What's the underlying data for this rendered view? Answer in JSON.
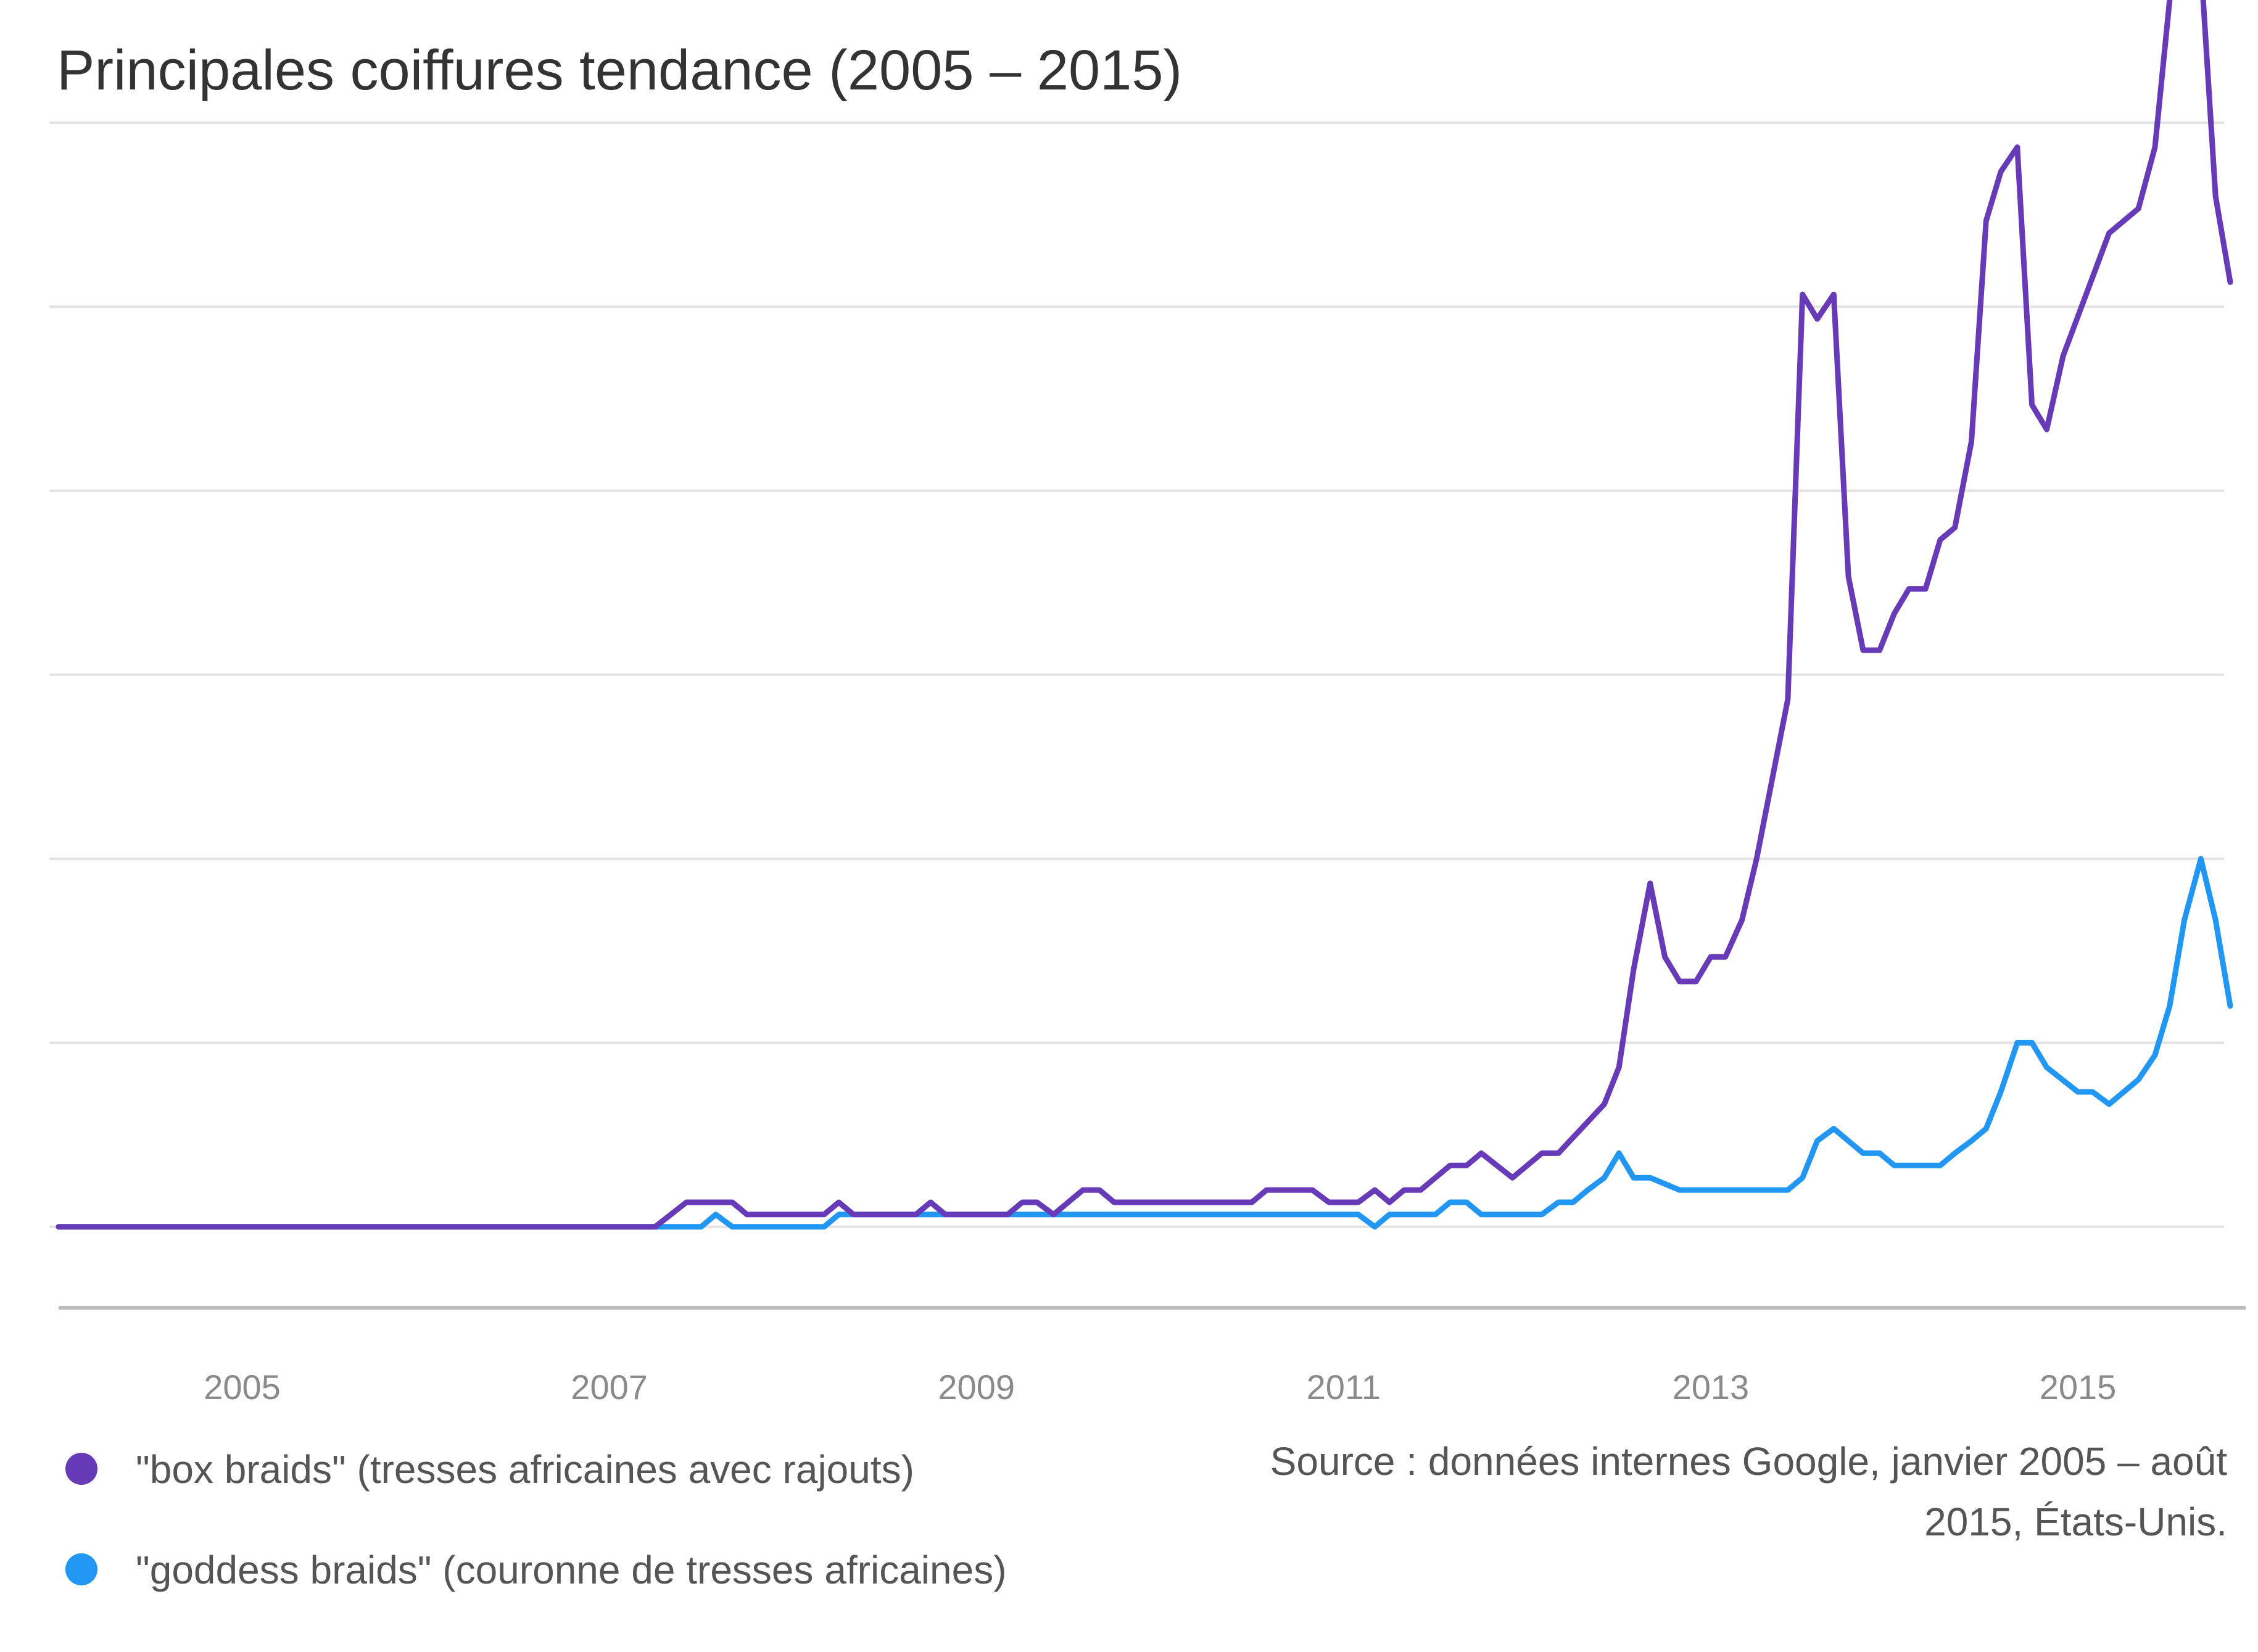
{
  "title": "Principales coiffures tendance (2005 – 2015)",
  "source_note": "Source : données internes Google, janvier 2005 – août 2015, États-Unis.",
  "chart_data": {
    "type": "line",
    "title": "Principales coiffures tendance (2005 – 2015)",
    "xlabel": "",
    "ylabel": "",
    "grid": true,
    "legend_position": "bottom-left",
    "x_tick_labels": [
      "2005",
      "2007",
      "2009",
      "2011",
      "2013",
      "2015"
    ],
    "x_tick_years": [
      2005,
      2007,
      2009,
      2011,
      2013,
      2015
    ],
    "xlim": [
      2004.0,
      2015.83
    ],
    "ylim": [
      -6.5,
      100
    ],
    "series": [
      {
        "name": "\"box braids\" (tresses africaines avec rajouts)",
        "color": "#673AB7",
        "x": [
          2004.0,
          2007.25,
          2007.42,
          2007.67,
          2007.75,
          2008.17,
          2008.25,
          2008.33,
          2008.67,
          2008.75,
          2008.83,
          2009.17,
          2009.25,
          2009.33,
          2009.42,
          2009.58,
          2009.67,
          2009.75,
          2010.5,
          2010.58,
          2010.83,
          2010.92,
          2011.08,
          2011.17,
          2011.25,
          2011.33,
          2011.42,
          2011.58,
          2011.67,
          2011.75,
          2011.92,
          2012.08,
          2012.17,
          2012.42,
          2012.5,
          2012.58,
          2012.67,
          2012.75,
          2012.83,
          2012.92,
          2013.0,
          2013.08,
          2013.17,
          2013.25,
          2013.42,
          2013.5,
          2013.58,
          2013.67,
          2013.75,
          2013.83,
          2013.92,
          2014.0,
          2014.08,
          2014.17,
          2014.25,
          2014.33,
          2014.42,
          2014.5,
          2014.58,
          2014.67,
          2014.75,
          2014.83,
          2014.92,
          2015.17,
          2015.25,
          2015.33,
          2015.42,
          2015.5,
          2015.58,
          2015.67,
          2015.75,
          2015.83
        ],
        "y": [
          0,
          0,
          2,
          2,
          1,
          1,
          2,
          1,
          1,
          2,
          1,
          1,
          2,
          2,
          1,
          3,
          3,
          2,
          2,
          3,
          3,
          2,
          2,
          3,
          2,
          3,
          3,
          5,
          5,
          6,
          4,
          6,
          6,
          10,
          13,
          21,
          28,
          22,
          20,
          20,
          22,
          22,
          25,
          30,
          43,
          76,
          74,
          76,
          53,
          47,
          47,
          50,
          52,
          52,
          56,
          57,
          64,
          82,
          86,
          88,
          67,
          65,
          71,
          81,
          82,
          83,
          88,
          100,
          106,
          103,
          84,
          77
        ]
      },
      {
        "name": "\"goddess braids\" (couronne de tresses africaines)",
        "color": "#2196F3",
        "x": [
          2004.0,
          2007.25,
          2007.5,
          2007.58,
          2007.67,
          2008.17,
          2008.25,
          2008.42,
          2011.08,
          2011.17,
          2011.25,
          2011.5,
          2011.58,
          2011.67,
          2011.75,
          2012.08,
          2012.17,
          2012.25,
          2012.33,
          2012.42,
          2012.5,
          2012.58,
          2012.67,
          2012.83,
          2012.92,
          2013.0,
          2013.42,
          2013.5,
          2013.58,
          2013.67,
          2013.83,
          2013.92,
          2014.0,
          2014.25,
          2014.33,
          2014.42,
          2014.5,
          2014.58,
          2014.67,
          2014.75,
          2014.83,
          2015.0,
          2015.08,
          2015.17,
          2015.25,
          2015.33,
          2015.42,
          2015.5,
          2015.58,
          2015.67,
          2015.75,
          2015.83
        ],
        "y": [
          0,
          0,
          0,
          1,
          0,
          0,
          1,
          1,
          1,
          0,
          1,
          1,
          2,
          2,
          1,
          1,
          2,
          2,
          3,
          4,
          6,
          4,
          4,
          3,
          3,
          3,
          3,
          4,
          7,
          8,
          6,
          6,
          5,
          5,
          6,
          7,
          8,
          11,
          15,
          15,
          13,
          11,
          11,
          10,
          11,
          12,
          14,
          18,
          25,
          30,
          25,
          18
        ]
      }
    ]
  }
}
